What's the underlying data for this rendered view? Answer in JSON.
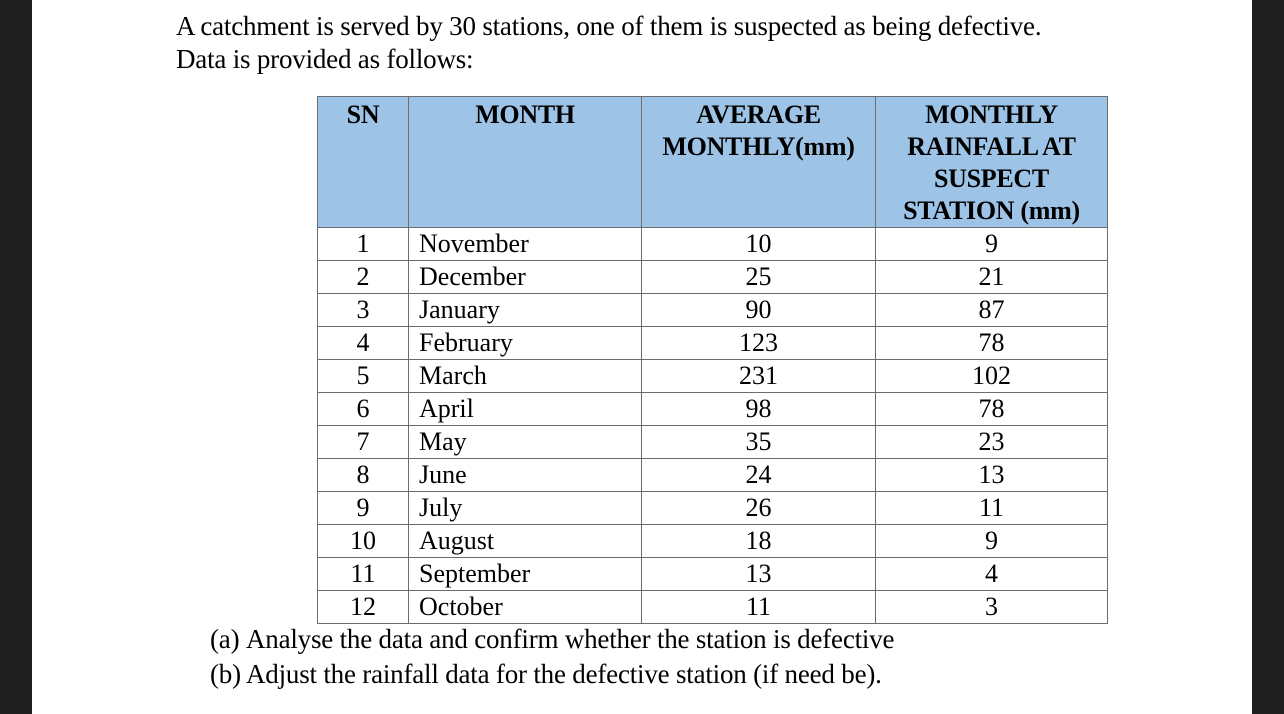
{
  "intro": {
    "line1": "A catchment is served by 30 stations, one of them is suspected as being defective.",
    "line2": "Data is provided as follows:"
  },
  "table": {
    "header_color": "#9dc3e6",
    "columns": {
      "sn": "SN",
      "month": "MONTH",
      "average_line1": "AVERAGE",
      "average_line2": "MONTHLY(mm)",
      "station_line1": "MONTHLY",
      "station_line2": "RAINFALL AT",
      "station_line3": "SUSPECT",
      "station_line4": "STATION (mm)"
    },
    "rows": [
      {
        "sn": "1",
        "month": "November",
        "average": "10",
        "station": "9"
      },
      {
        "sn": "2",
        "month": "December",
        "average": "25",
        "station": "21"
      },
      {
        "sn": "3",
        "month": "January",
        "average": "90",
        "station": "87"
      },
      {
        "sn": "4",
        "month": "February",
        "average": "123",
        "station": "78"
      },
      {
        "sn": "5",
        "month": "March",
        "average": "231",
        "station": "102"
      },
      {
        "sn": "6",
        "month": "April",
        "average": "98",
        "station": "78"
      },
      {
        "sn": "7",
        "month": "May",
        "average": "35",
        "station": "23"
      },
      {
        "sn": "8",
        "month": "June",
        "average": "24",
        "station": "13"
      },
      {
        "sn": "9",
        "month": "July",
        "average": "26",
        "station": "11"
      },
      {
        "sn": "10",
        "month": "August",
        "average": "18",
        "station": "9"
      },
      {
        "sn": "11",
        "month": "September",
        "average": "13",
        "station": "4"
      },
      {
        "sn": "12",
        "month": "October",
        "average": "11",
        "station": "3"
      }
    ]
  },
  "questions": {
    "a_label": "(a)",
    "a_text": "Analyse the data and confirm whether the station is defective",
    "b_label": "(b)",
    "b_text": "Adjust the rainfall data for the defective station (if need be)."
  }
}
